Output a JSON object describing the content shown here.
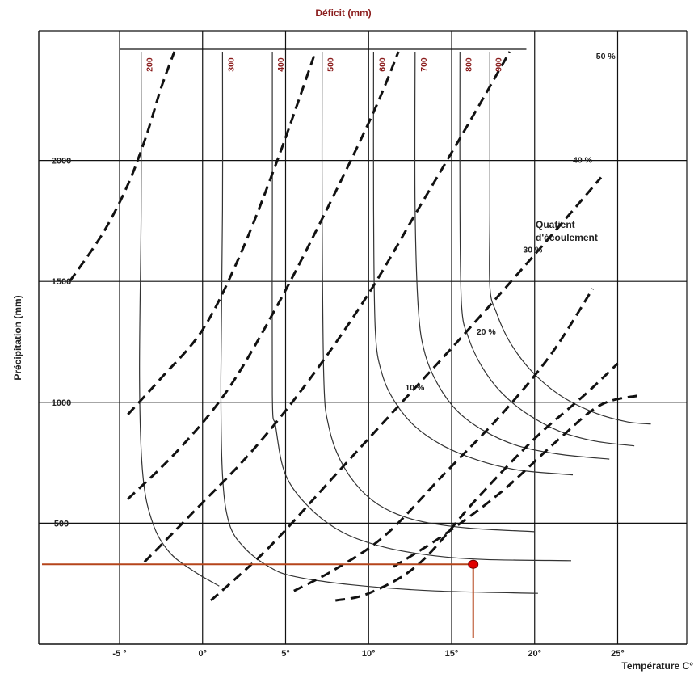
{
  "chart_data": {
    "type": "line",
    "top_title": "Déficit (mm)",
    "xlabel": "Température C°",
    "ylabel": "Précipitation (mm)",
    "xlim": [
      -7.5,
      27
    ],
    "ylim": [
      0,
      2500
    ],
    "x_ticks": [
      {
        "value": -5,
        "label": "-5 °"
      },
      {
        "value": 0,
        "label": "0°"
      },
      {
        "value": 5,
        "label": "5°"
      },
      {
        "value": 10,
        "label": "10°"
      },
      {
        "value": 15,
        "label": "15°"
      },
      {
        "value": 20,
        "label": "20°"
      },
      {
        "value": 25,
        "label": "25°"
      }
    ],
    "y_ticks": [
      {
        "value": 500,
        "label": "500"
      },
      {
        "value": 1000,
        "label": "1000"
      },
      {
        "value": 1500,
        "label": "1500"
      },
      {
        "value": 2000,
        "label": "2000"
      }
    ],
    "grid": true,
    "side_label": "Quatient d'écoulement",
    "deficit_curves": [
      {
        "label": "200",
        "points": [
          [
            -3.7,
            2450
          ],
          [
            -3.7,
            1800
          ],
          [
            -3.8,
            1100
          ],
          [
            -3.6,
            700
          ],
          [
            -3,
            500
          ],
          [
            -2,
            380
          ],
          [
            -0.5,
            300
          ],
          [
            1,
            240
          ]
        ]
      },
      {
        "label": "300",
        "points": [
          [
            1.2,
            2450
          ],
          [
            1.2,
            1800
          ],
          [
            1.1,
            1100
          ],
          [
            1.2,
            700
          ],
          [
            1.6,
            500
          ],
          [
            2.5,
            400
          ],
          [
            4,
            320
          ],
          [
            5.5,
            280
          ],
          [
            9,
            245
          ],
          [
            14,
            220
          ],
          [
            20.2,
            210
          ]
        ]
      },
      {
        "label": "400",
        "points": [
          [
            4.2,
            2450
          ],
          [
            4.2,
            1800
          ],
          [
            4.2,
            1030
          ],
          [
            4.4,
            900
          ],
          [
            5,
            700
          ],
          [
            6.5,
            560
          ],
          [
            8.5,
            460
          ],
          [
            11,
            400
          ],
          [
            14,
            365
          ],
          [
            17,
            350
          ],
          [
            22.2,
            345
          ]
        ]
      },
      {
        "label": "500",
        "points": [
          [
            7.2,
            2450
          ],
          [
            7.2,
            1800
          ],
          [
            7.3,
            1100
          ],
          [
            7.6,
            900
          ],
          [
            8.3,
            760
          ],
          [
            9.5,
            640
          ],
          [
            11,
            560
          ],
          [
            13,
            510
          ],
          [
            16,
            480
          ],
          [
            20,
            465
          ]
        ]
      },
      {
        "label": "600",
        "points": [
          [
            10.3,
            2450
          ],
          [
            10.3,
            1800
          ],
          [
            10.4,
            1300
          ],
          [
            10.8,
            1120
          ],
          [
            11.6,
            1000
          ],
          [
            12.8,
            900
          ],
          [
            14.5,
            820
          ],
          [
            16.6,
            760
          ],
          [
            19,
            720
          ],
          [
            22.3,
            700
          ]
        ]
      },
      {
        "label": "700",
        "points": [
          [
            12.8,
            2450
          ],
          [
            12.8,
            1800
          ],
          [
            13,
            1380
          ],
          [
            13.4,
            1200
          ],
          [
            14.2,
            1070
          ],
          [
            15.4,
            960
          ],
          [
            17,
            880
          ],
          [
            19,
            820
          ],
          [
            21.5,
            785
          ],
          [
            24.5,
            765
          ]
        ]
      },
      {
        "label": "800",
        "points": [
          [
            15.5,
            2450
          ],
          [
            15.5,
            1800
          ],
          [
            15.6,
            1400
          ],
          [
            16,
            1270
          ],
          [
            16.8,
            1150
          ],
          [
            18,
            1040
          ],
          [
            19.6,
            950
          ],
          [
            21.5,
            880
          ],
          [
            23.6,
            840
          ],
          [
            26,
            820
          ]
        ]
      },
      {
        "label": "900",
        "points": [
          [
            17.3,
            2450
          ],
          [
            17.3,
            1800
          ],
          [
            17.3,
            1480
          ],
          [
            17.7,
            1370
          ],
          [
            18.5,
            1250
          ],
          [
            19.8,
            1130
          ],
          [
            21.5,
            1030
          ],
          [
            23.5,
            960
          ],
          [
            25.5,
            920
          ],
          [
            27,
            910
          ]
        ]
      }
    ],
    "quotient_curves": [
      {
        "label": "",
        "points": [
          [
            -8,
            1500
          ],
          [
            -6,
            1700
          ],
          [
            -4.5,
            1900
          ],
          [
            -3.4,
            2100
          ],
          [
            -2.5,
            2300
          ],
          [
            -1.7,
            2450
          ]
        ]
      },
      {
        "label": "",
        "points": [
          [
            -4.5,
            950
          ],
          [
            -2.5,
            1100
          ],
          [
            0,
            1300
          ],
          [
            2.2,
            1600
          ],
          [
            4.5,
            2000
          ],
          [
            6.8,
            2450
          ]
        ]
      },
      {
        "label": "",
        "points": [
          [
            -4.5,
            600
          ],
          [
            -1.5,
            800
          ],
          [
            1.5,
            1050
          ],
          [
            4.5,
            1400
          ],
          [
            7.5,
            1800
          ],
          [
            10.3,
            2200
          ],
          [
            11.8,
            2450
          ]
        ]
      },
      {
        "label": "50 %",
        "points": [
          [
            -3.5,
            340
          ],
          [
            -0.5,
            550
          ],
          [
            3,
            800
          ],
          [
            6.5,
            1100
          ],
          [
            10,
            1450
          ],
          [
            13,
            1800
          ],
          [
            16,
            2150
          ],
          [
            18.5,
            2450
          ]
        ]
      },
      {
        "label": "40 %",
        "points": [
          [
            0.5,
            180
          ],
          [
            4,
            400
          ],
          [
            8,
            700
          ],
          [
            12,
            1000
          ],
          [
            16,
            1300
          ],
          [
            20.5,
            1650
          ],
          [
            24,
            1930
          ]
        ]
      },
      {
        "label": "30 %",
        "points": [
          [
            5.5,
            220
          ],
          [
            8,
            310
          ],
          [
            11,
            450
          ],
          [
            14.5,
            700
          ],
          [
            18,
            950
          ],
          [
            21,
            1200
          ],
          [
            23.5,
            1470
          ]
        ]
      },
      {
        "label": "20 %",
        "points": [
          [
            8,
            180
          ],
          [
            10,
            210
          ],
          [
            13,
            330
          ],
          [
            16.5,
            600
          ],
          [
            20,
            850
          ],
          [
            23,
            1030
          ],
          [
            25,
            1160
          ]
        ]
      },
      {
        "label": "10 %",
        "points": [
          [
            11.5,
            320
          ],
          [
            14.5,
            450
          ],
          [
            18,
            630
          ],
          [
            21.5,
            850
          ],
          [
            24,
            990
          ],
          [
            26.5,
            1030
          ]
        ]
      }
    ],
    "quotient_label_positions": {
      "50 %": [
        23.7,
        2420
      ],
      "40 %": [
        22.3,
        1990
      ],
      "30 %": [
        19.3,
        1620
      ],
      "20 %": [
        16.5,
        1280
      ],
      "10 %": [
        12.2,
        1050
      ]
    },
    "marker": {
      "temperature": 16.3,
      "precipitation": 330
    }
  }
}
